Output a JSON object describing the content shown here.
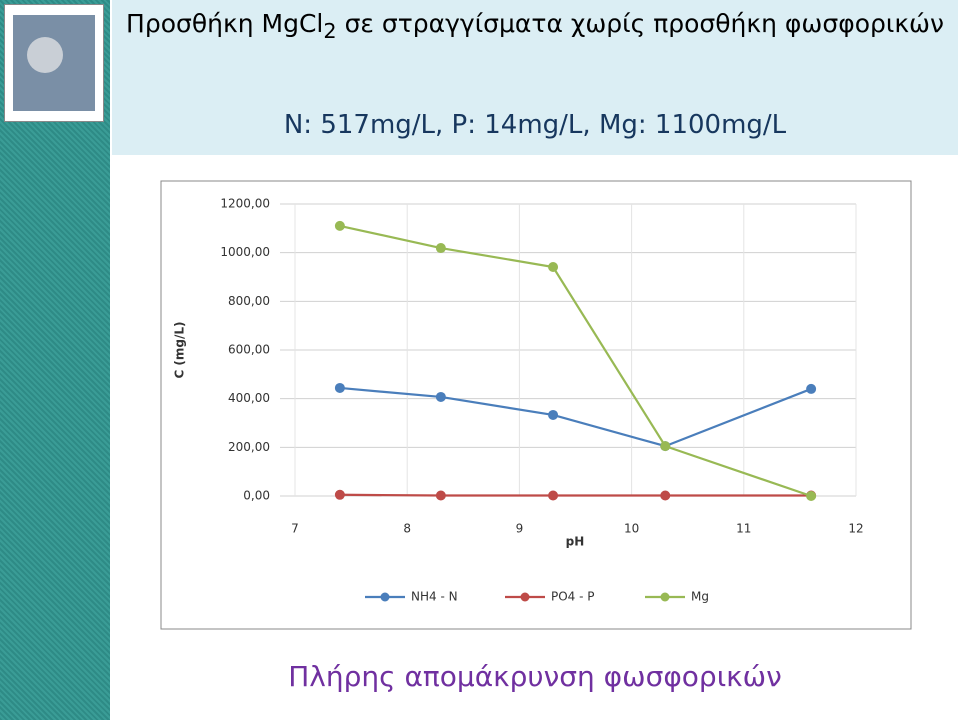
{
  "slide": {
    "title": [
      "Προσθήκη MgCl",
      "2",
      " σε στραγγίσματα χωρίς προσθήκη φωσφορικών"
    ],
    "subtitle": "N: 517mg/L, P: 14mg/L, Mg: 1100mg/L",
    "footer": "Πλήρης απομάκρυνση φωσφορικών"
  },
  "chart_data": {
    "type": "line",
    "x_label": "pH",
    "y_label": "C (mg/L)",
    "x": [
      7.4,
      8.3,
      9.3,
      10.3,
      11.6
    ],
    "series": [
      {
        "name": "NH4 - N",
        "color": "#4a7ebb",
        "values": [
          444,
          407,
          333,
          205,
          440
        ]
      },
      {
        "name": "PO4 - P",
        "color": "#be4b48",
        "values": [
          5,
          2,
          2,
          2,
          2
        ]
      },
      {
        "name": "Mg",
        "color": "#98b954",
        "values": [
          1110,
          1019,
          941,
          205,
          0
        ]
      }
    ],
    "xlim": [
      7,
      12
    ],
    "xticks": [
      7,
      8,
      9,
      10,
      11,
      12
    ],
    "ylim": [
      0,
      1200
    ],
    "yticks": [
      {
        "value": 0,
        "label": "0,00"
      },
      {
        "value": 200,
        "label": "200,00"
      },
      {
        "value": 400,
        "label": "400,00"
      },
      {
        "value": 600,
        "label": "600,00"
      },
      {
        "value": 800,
        "label": "800,00"
      },
      {
        "value": 1000,
        "label": "1000,00"
      },
      {
        "value": 1200,
        "label": "1200,00"
      }
    ],
    "grid": true,
    "legend": "bottom"
  }
}
